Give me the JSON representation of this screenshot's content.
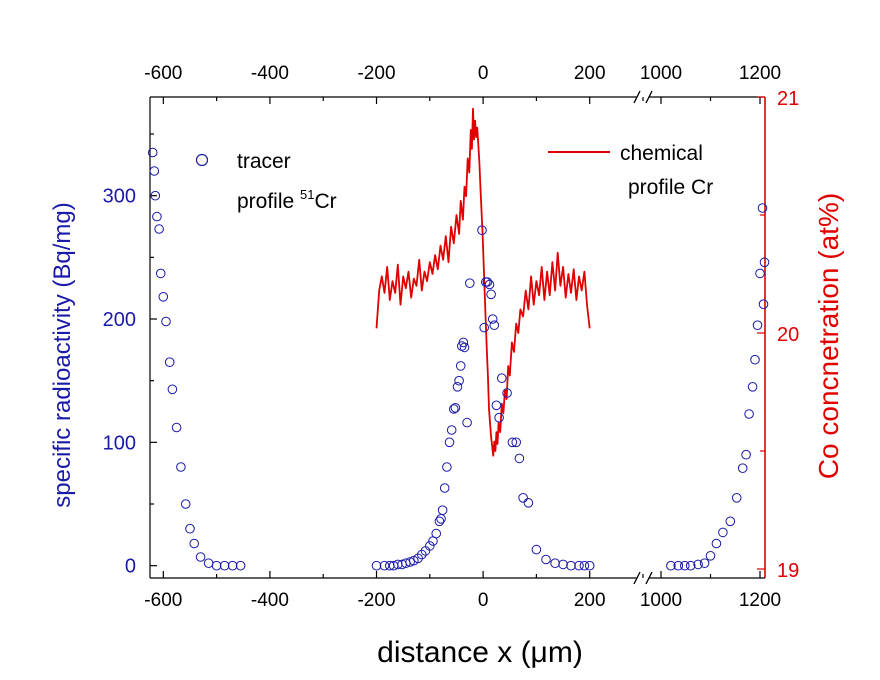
{
  "chart_data": {
    "type": "scatter",
    "xlabel": "distance x  (μm)",
    "ylabel_left": "specific radioactivity (Bq/mg)",
    "ylabel_right": "Co concnetration (at%)",
    "x_ticks": [
      {
        "value": -600,
        "label": "-600"
      },
      {
        "value": -400,
        "label": "-400"
      },
      {
        "value": -200,
        "label": "-200"
      },
      {
        "value": 0,
        "label": "0"
      },
      {
        "value": 200,
        "label": "200"
      },
      {
        "value": 1000,
        "label": "1000"
      },
      {
        "value": 1200,
        "label": "1200"
      }
    ],
    "x_break": {
      "left_segment_end": 300,
      "right_segment_start": 1000,
      "right_segment_end": 1200
    },
    "y_left": {
      "range": [
        -10,
        380
      ],
      "ticks": [
        0,
        100,
        200,
        300
      ],
      "color": "#1a1aa8"
    },
    "y_right": {
      "range": [
        19,
        21
      ],
      "ticks": [
        19,
        20,
        21
      ],
      "color": "#e00000"
    },
    "legend": {
      "tracer_line1": "tracer",
      "tracer_line2_prefix": "profile ",
      "tracer_superscript": "51",
      "tracer_line2_suffix": "Cr",
      "chemical_line1": "chemical",
      "chemical_line2": "profile Cr"
    },
    "series": [
      {
        "name": "tracer profile 51Cr",
        "axis": "left",
        "marker": "open-circle",
        "color": "#1a1aa8",
        "points": [
          [
            -620,
            335
          ],
          [
            -617,
            320
          ],
          [
            -615,
            300
          ],
          [
            -612,
            283
          ],
          [
            -608,
            273
          ],
          [
            -605,
            237
          ],
          [
            -600,
            218
          ],
          [
            -595,
            198
          ],
          [
            -588,
            165
          ],
          [
            -583,
            143
          ],
          [
            -575,
            112
          ],
          [
            -567,
            80
          ],
          [
            -558,
            50
          ],
          [
            -550,
            30
          ],
          [
            -542,
            18
          ],
          [
            -530,
            7
          ],
          [
            -515,
            2
          ],
          [
            -500,
            0
          ],
          [
            -485,
            0
          ],
          [
            -470,
            0
          ],
          [
            -455,
            0
          ],
          [
            -200,
            0
          ],
          [
            -185,
            0
          ],
          [
            -175,
            0
          ],
          [
            -168,
            0
          ],
          [
            -160,
            1
          ],
          [
            -152,
            1
          ],
          [
            -145,
            2
          ],
          [
            -137,
            3
          ],
          [
            -130,
            4
          ],
          [
            -122,
            6
          ],
          [
            -115,
            9
          ],
          [
            -108,
            12
          ],
          [
            -100,
            16
          ],
          [
            -94,
            20
          ],
          [
            -88,
            26
          ],
          [
            -82,
            36
          ],
          [
            -79,
            38
          ],
          [
            -76,
            45
          ],
          [
            -72,
            63
          ],
          [
            -68,
            80
          ],
          [
            -63,
            100
          ],
          [
            -59,
            110
          ],
          [
            -55,
            127
          ],
          [
            -52,
            128
          ],
          [
            -48,
            145
          ],
          [
            -45,
            150
          ],
          [
            -42,
            162
          ],
          [
            -40,
            178
          ],
          [
            -37,
            181
          ],
          [
            -35,
            177
          ],
          [
            -30,
            116
          ],
          [
            -25,
            229
          ],
          [
            -2,
            272
          ],
          [
            2,
            193
          ],
          [
            5,
            230
          ],
          [
            8,
            230
          ],
          [
            12,
            228
          ],
          [
            15,
            220
          ],
          [
            18,
            200
          ],
          [
            21,
            195
          ],
          [
            25,
            130
          ],
          [
            30,
            120
          ],
          [
            35,
            152
          ],
          [
            45,
            140
          ],
          [
            55,
            100
          ],
          [
            62,
            100
          ],
          [
            68,
            87
          ],
          [
            75,
            55
          ],
          [
            85,
            51
          ],
          [
            100,
            13
          ],
          [
            118,
            5
          ],
          [
            135,
            2
          ],
          [
            150,
            1
          ],
          [
            165,
            0
          ],
          [
            180,
            0
          ],
          [
            190,
            0
          ],
          [
            200,
            0
          ],
          [
            1020,
            0
          ],
          [
            1035,
            0
          ],
          [
            1048,
            0
          ],
          [
            1060,
            0
          ],
          [
            1075,
            1
          ],
          [
            1088,
            2
          ],
          [
            1100,
            8
          ],
          [
            1112,
            18
          ],
          [
            1125,
            27
          ],
          [
            1140,
            36
          ],
          [
            1153,
            55
          ],
          [
            1165,
            79
          ],
          [
            1172,
            90
          ],
          [
            1178,
            123
          ],
          [
            1185,
            145
          ],
          [
            1190,
            167
          ],
          [
            1195,
            195
          ],
          [
            1200,
            237
          ],
          [
            1205,
            290
          ],
          [
            1207,
            212
          ],
          [
            1209,
            246
          ]
        ]
      },
      {
        "name": "chemical profile Cr",
        "axis": "right",
        "type": "line",
        "color": "#e00000",
        "points": [
          [
            -200,
            20.02
          ],
          [
            -195,
            20.18
          ],
          [
            -190,
            20.24
          ],
          [
            -185,
            20.17
          ],
          [
            -180,
            20.28
          ],
          [
            -175,
            20.14
          ],
          [
            -170,
            20.22
          ],
          [
            -165,
            20.17
          ],
          [
            -160,
            20.29
          ],
          [
            -155,
            20.12
          ],
          [
            -150,
            20.24
          ],
          [
            -145,
            20.19
          ],
          [
            -140,
            20.26
          ],
          [
            -135,
            20.15
          ],
          [
            -130,
            20.23
          ],
          [
            -125,
            20.2
          ],
          [
            -120,
            20.31
          ],
          [
            -115,
            20.18
          ],
          [
            -110,
            20.26
          ],
          [
            -105,
            20.22
          ],
          [
            -100,
            20.3
          ],
          [
            -95,
            20.25
          ],
          [
            -90,
            20.33
          ],
          [
            -85,
            20.27
          ],
          [
            -80,
            20.37
          ],
          [
            -75,
            20.31
          ],
          [
            -70,
            20.41
          ],
          [
            -65,
            20.3
          ],
          [
            -60,
            20.45
          ],
          [
            -55,
            20.38
          ],
          [
            -50,
            20.5
          ],
          [
            -45,
            20.42
          ],
          [
            -42,
            20.56
          ],
          [
            -38,
            20.48
          ],
          [
            -35,
            20.62
          ],
          [
            -32,
            20.58
          ],
          [
            -29,
            20.74
          ],
          [
            -26,
            20.68
          ],
          [
            -23,
            20.86
          ],
          [
            -21,
            20.78
          ],
          [
            -19,
            20.95
          ],
          [
            -17,
            20.82
          ],
          [
            -15,
            20.9
          ],
          [
            -13,
            20.83
          ],
          [
            -11,
            20.87
          ],
          [
            -9,
            20.8
          ],
          [
            -7,
            20.72
          ],
          [
            -5,
            20.62
          ],
          [
            -3,
            20.52
          ],
          [
            -1,
            20.42
          ],
          [
            1,
            20.3
          ],
          [
            3,
            20.17
          ],
          [
            5,
            20.04
          ],
          [
            7,
            19.93
          ],
          [
            9,
            19.82
          ],
          [
            11,
            19.68
          ],
          [
            13,
            19.62
          ],
          [
            15,
            19.56
          ],
          [
            17,
            19.52
          ],
          [
            19,
            19.48
          ],
          [
            21,
            19.54
          ],
          [
            23,
            19.5
          ],
          [
            25,
            19.58
          ],
          [
            27,
            19.53
          ],
          [
            29,
            19.62
          ],
          [
            32,
            19.58
          ],
          [
            35,
            19.7
          ],
          [
            38,
            19.66
          ],
          [
            41,
            19.76
          ],
          [
            44,
            19.72
          ],
          [
            47,
            19.86
          ],
          [
            50,
            19.82
          ],
          [
            54,
            19.96
          ],
          [
            58,
            19.92
          ],
          [
            62,
            20.04
          ],
          [
            66,
            20.0
          ],
          [
            70,
            20.1
          ],
          [
            75,
            20.07
          ],
          [
            80,
            20.18
          ],
          [
            85,
            20.1
          ],
          [
            90,
            20.24
          ],
          [
            95,
            20.12
          ],
          [
            100,
            20.22
          ],
          [
            105,
            20.16
          ],
          [
            110,
            20.28
          ],
          [
            115,
            20.14
          ],
          [
            120,
            20.26
          ],
          [
            125,
            20.16
          ],
          [
            130,
            20.3
          ],
          [
            135,
            20.18
          ],
          [
            140,
            20.34
          ],
          [
            145,
            20.2
          ],
          [
            150,
            20.28
          ],
          [
            155,
            20.15
          ],
          [
            160,
            20.25
          ],
          [
            165,
            20.17
          ],
          [
            170,
            20.27
          ],
          [
            175,
            20.14
          ],
          [
            180,
            20.24
          ],
          [
            185,
            20.18
          ],
          [
            190,
            20.26
          ],
          [
            195,
            20.12
          ],
          [
            200,
            20.02
          ]
        ]
      }
    ]
  }
}
